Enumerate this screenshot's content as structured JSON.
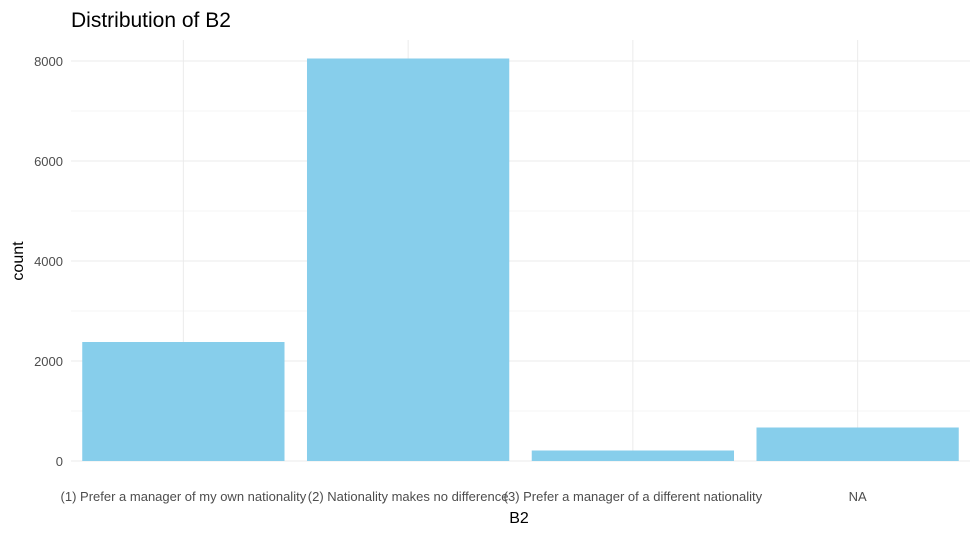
{
  "chart_data": {
    "type": "bar",
    "title": "Distribution of B2",
    "xlabel": "B2",
    "ylabel": "count",
    "categories": [
      "(1) Prefer a manager of my own nationality",
      "(2) Nationality makes no difference",
      "(3) Prefer a manager of a different nationality",
      "NA"
    ],
    "values": [
      2380,
      8050,
      210,
      670
    ],
    "ylim": [
      0,
      8000
    ],
    "yticks": [
      0,
      2000,
      4000,
      6000,
      8000
    ],
    "bar_color": "#87CEEB",
    "grid": true,
    "legend": "none"
  }
}
